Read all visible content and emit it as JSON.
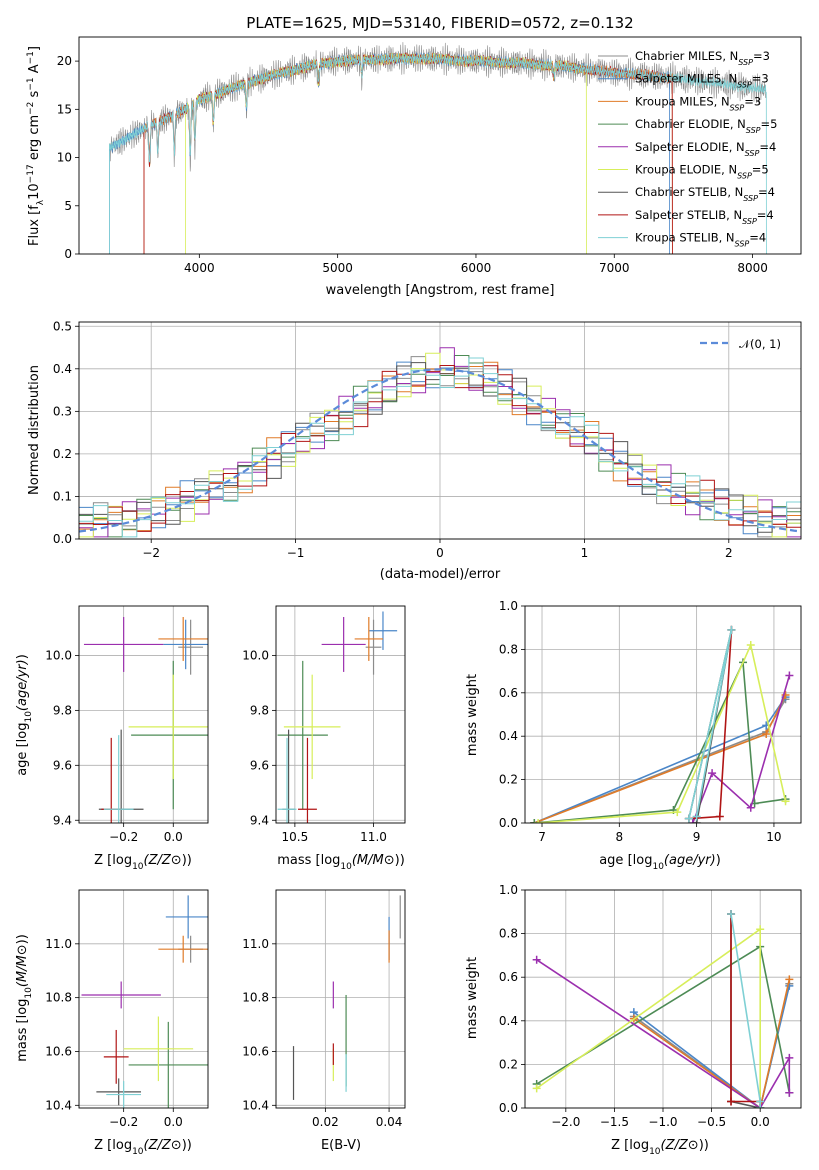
{
  "figure_title": "PLATE=1625, MJD=53140, FIBERID=0572, z=0.132",
  "models": [
    {
      "name": "Chabrier MILES",
      "nssp": "3",
      "color": "#8c8c8c"
    },
    {
      "name": "Salpeter MILES",
      "nssp": "3",
      "color": "#4a86c8"
    },
    {
      "name": "Kroupa MILES",
      "nssp": "3",
      "color": "#e07b28"
    },
    {
      "name": "Chabrier ELODIE",
      "nssp": "5",
      "color": "#4d8b55"
    },
    {
      "name": "Salpeter ELODIE",
      "nssp": "4",
      "color": "#9b2fae"
    },
    {
      "name": "Kroupa ELODIE",
      "nssp": "5",
      "color": "#d7ee5a"
    },
    {
      "name": "Chabrier STELIB",
      "nssp": "4",
      "color": "#555555"
    },
    {
      "name": "Salpeter STELIB",
      "nssp": "4",
      "color": "#b01515"
    },
    {
      "name": "Kroupa STELIB",
      "nssp": "4",
      "color": "#7fd0d4"
    }
  ],
  "chart_data": [
    {
      "id": "spectrum",
      "type": "line",
      "xlabel": "wavelength [Angstrom, rest frame]",
      "ylabel": "Flux [f",
      "xlim": [
        3130,
        8350
      ],
      "ylim": [
        0,
        22.5
      ],
      "xticks": [
        "4000",
        "5000",
        "6000",
        "7000",
        "8000"
      ],
      "yticks": [
        "0",
        "5",
        "10",
        "15",
        "20"
      ],
      "continuum": {
        "wavelength": [
          3350,
          3600,
          3750,
          3900,
          4000,
          4200,
          4400,
          4600,
          4800,
          5000,
          5300,
          5600,
          6000,
          6300,
          6600,
          7000,
          7400,
          7800,
          8100
        ],
        "flux": [
          11.0,
          13.0,
          14.0,
          15.0,
          16.0,
          17.0,
          18.0,
          18.8,
          19.5,
          20.0,
          20.2,
          20.3,
          20.0,
          19.8,
          19.5,
          18.8,
          18.3,
          17.6,
          17.0
        ]
      },
      "model_coverage": [
        {
          "model": "Salpeter MILES",
          "from": 3350,
          "to": 7400
        },
        {
          "model": "Kroupa MILES",
          "from": 3600,
          "to": 7420
        },
        {
          "model": "Kroupa ELODIE",
          "from": 3900,
          "to": 6800
        },
        {
          "model": "Salpeter STELIB",
          "from": 3600,
          "to": 7420
        },
        {
          "model": "Kroupa STELIB",
          "from": 3350,
          "to": 8100
        }
      ]
    },
    {
      "id": "residuals",
      "type": "histogram",
      "xlabel": "(data-model)/error",
      "ylabel": "Normed distribution",
      "xlim": [
        -2.5,
        2.5
      ],
      "ylim": [
        0,
        0.51
      ],
      "xticks": [
        "−2",
        "−1",
        "0",
        "1",
        "2"
      ],
      "yticks": [
        "0.0",
        "0.1",
        "0.2",
        "0.3",
        "0.4",
        "0.5"
      ],
      "legend": "𝒩(0, 1)",
      "reference_curve": {
        "name": "N(0,1)",
        "mean": 0,
        "sigma": 1
      },
      "bin_width": 0.1,
      "bins_from": -2.5,
      "envelope": [
        0.035,
        0.04,
        0.045,
        0.05,
        0.06,
        0.07,
        0.08,
        0.09,
        0.1,
        0.12,
        0.13,
        0.15,
        0.17,
        0.19,
        0.21,
        0.23,
        0.25,
        0.27,
        0.29,
        0.31,
        0.33,
        0.35,
        0.37,
        0.38,
        0.39,
        0.4,
        0.39,
        0.38,
        0.37,
        0.35,
        0.33,
        0.31,
        0.29,
        0.27,
        0.25,
        0.23,
        0.2,
        0.18,
        0.16,
        0.14,
        0.13,
        0.11,
        0.1,
        0.09,
        0.08,
        0.07,
        0.06,
        0.05,
        0.045,
        0.04
      ]
    },
    {
      "id": "age_vs_Z",
      "type": "errorbar",
      "xlabel": "Z [log",
      "ylabel": "age  [log",
      "xlim": [
        -0.38,
        0.14
      ],
      "ylim": [
        9.39,
        10.18
      ],
      "xticks": [
        "−0.2",
        "0.0"
      ],
      "yticks": [
        "9.4",
        "9.6",
        "9.8",
        "10.0"
      ],
      "points": [
        {
          "x": 0.07,
          "y": 10.03,
          "xerr": 0.05,
          "yerr": 0.1
        },
        {
          "x": 0.05,
          "y": 10.04,
          "xerr": 0.09,
          "yerr": 0.09
        },
        {
          "x": 0.04,
          "y": 10.06,
          "xerr": 0.1,
          "yerr": 0.08
        },
        {
          "x": 0.0,
          "y": 9.71,
          "xerr": 0.17,
          "yerr": 0.27
        },
        {
          "x": -0.2,
          "y": 10.04,
          "xerr": 0.16,
          "yerr": 0.1
        },
        {
          "x": 0.0,
          "y": 9.74,
          "xerr": 0.18,
          "yerr": 0.19
        },
        {
          "x": -0.21,
          "y": 9.44,
          "xerr": 0.09,
          "yerr": 0.29
        },
        {
          "x": -0.25,
          "y": 9.44,
          "xerr": 0.04,
          "yerr": 0.26
        },
        {
          "x": -0.22,
          "y": 9.44,
          "xerr": 0.06,
          "yerr": 0.27
        }
      ]
    },
    {
      "id": "age_vs_mass",
      "type": "errorbar",
      "xlabel": "mass [log",
      "ylabel": "",
      "xlim": [
        10.38,
        11.2
      ],
      "ylim": [
        9.39,
        10.18
      ],
      "xticks": [
        "10.5",
        "11.0"
      ],
      "yticks": [
        "9.4",
        "9.6",
        "9.8",
        "10.0",
        "",
        ""
      ],
      "points": [
        {
          "x": 11.0,
          "y": 10.03,
          "xerr": 0.05,
          "yerr": 0.1
        },
        {
          "x": 11.06,
          "y": 10.09,
          "xerr": 0.09,
          "yerr": 0.07
        },
        {
          "x": 10.97,
          "y": 10.06,
          "xerr": 0.09,
          "yerr": 0.08
        },
        {
          "x": 10.55,
          "y": 9.71,
          "xerr": 0.16,
          "yerr": 0.27
        },
        {
          "x": 10.81,
          "y": 10.04,
          "xerr": 0.14,
          "yerr": 0.1
        },
        {
          "x": 10.61,
          "y": 9.74,
          "xerr": 0.18,
          "yerr": 0.19
        },
        {
          "x": 10.46,
          "y": 9.44,
          "xerr": 0.04,
          "yerr": 0.29
        },
        {
          "x": 10.58,
          "y": 9.44,
          "xerr": 0.06,
          "yerr": 0.26
        },
        {
          "x": 10.45,
          "y": 9.44,
          "xerr": 0.06,
          "yerr": 0.26
        }
      ]
    },
    {
      "id": "mass_weight_vs_age",
      "type": "line",
      "xlabel": "age  [log",
      "ylabel": "mass weight",
      "xlim": [
        6.78,
        10.35
      ],
      "ylim": [
        0,
        1
      ],
      "xticks": [
        "7",
        "8",
        "9",
        "10"
      ],
      "yticks": [
        "0.0",
        "0.2",
        "0.4",
        "0.6",
        "0.8",
        "1.0"
      ],
      "series": [
        {
          "x": [
            6.9,
            9.9,
            10.15
          ],
          "y": [
            0.0,
            0.42,
            0.57
          ]
        },
        {
          "x": [
            6.9,
            9.9,
            10.15
          ],
          "y": [
            0.0,
            0.45,
            0.58
          ]
        },
        {
          "x": [
            6.9,
            9.9,
            10.15
          ],
          "y": [
            0.0,
            0.41,
            0.59
          ]
        },
        {
          "x": [
            6.9,
            8.7,
            9.6,
            9.75,
            10.15
          ],
          "y": [
            0.0,
            0.06,
            0.74,
            0.09,
            0.11
          ]
        },
        {
          "x": [
            8.95,
            9.2,
            9.7,
            10.2
          ],
          "y": [
            0.0,
            0.23,
            0.07,
            0.68
          ]
        },
        {
          "x": [
            6.95,
            8.75,
            9.7,
            10.15
          ],
          "y": [
            0.0,
            0.05,
            0.82,
            0.1
          ]
        },
        {
          "x": [
            8.9,
            9.45,
            9.0
          ],
          "y": [
            0.02,
            0.89,
            0.0
          ]
        },
        {
          "x": [
            8.9,
            9.3,
            9.45
          ],
          "y": [
            0.02,
            0.03,
            0.89
          ]
        },
        {
          "x": [
            8.9,
            9.45,
            9.0
          ],
          "y": [
            0.02,
            0.89,
            0.03
          ]
        }
      ]
    },
    {
      "id": "mass_vs_Z",
      "type": "errorbar",
      "xlabel": "Z [log",
      "ylabel": "mass [log",
      "xlim": [
        -0.38,
        0.14
      ],
      "ylim": [
        10.39,
        11.2
      ],
      "xticks": [
        "−0.2",
        "0.0"
      ],
      "yticks": [
        "10.4",
        "10.6",
        "10.8",
        "11.0"
      ],
      "points": [
        {
          "x": 0.07,
          "y": 10.98,
          "xerr": 0.05,
          "yerr": 0.05
        },
        {
          "x": 0.06,
          "y": 11.1,
          "xerr": 0.09,
          "yerr": 0.08
        },
        {
          "x": 0.04,
          "y": 10.98,
          "xerr": 0.1,
          "yerr": 0.05
        },
        {
          "x": -0.02,
          "y": 10.55,
          "xerr": 0.16,
          "yerr": 0.16
        },
        {
          "x": -0.21,
          "y": 10.81,
          "xerr": 0.16,
          "yerr": 0.05
        },
        {
          "x": -0.06,
          "y": 10.61,
          "xerr": 0.14,
          "yerr": 0.12
        },
        {
          "x": -0.22,
          "y": 10.45,
          "xerr": 0.09,
          "yerr": 0.05
        },
        {
          "x": -0.23,
          "y": 10.58,
          "xerr": 0.05,
          "yerr": 0.1
        },
        {
          "x": -0.2,
          "y": 10.44,
          "xerr": 0.07,
          "yerr": 0.05
        }
      ]
    },
    {
      "id": "mass_vs_ebv",
      "type": "errorbar",
      "xlabel": "E(B-V)",
      "ylabel": "",
      "xlim": [
        0.0045,
        0.045
      ],
      "ylim": [
        10.39,
        11.2
      ],
      "xticks": [
        "0.02",
        "0.04"
      ],
      "yticks": [
        "10.4",
        "10.6",
        "10.8",
        "11.0"
      ],
      "points": [
        {
          "x": 0.0435,
          "y": 11.1,
          "xerr": 0,
          "yerr": 0.08
        },
        {
          "x": 0.04,
          "y": 11.02,
          "xerr": 0,
          "yerr": 0.08
        },
        {
          "x": 0.04,
          "y": 10.99,
          "xerr": 0,
          "yerr": 0.06
        },
        {
          "x": 0.0265,
          "y": 10.64,
          "xerr": 0,
          "yerr": 0.17
        },
        {
          "x": 0.0225,
          "y": 10.81,
          "xerr": 0,
          "yerr": 0.05
        },
        {
          "x": 0.0225,
          "y": 10.55,
          "xerr": 0,
          "yerr": 0.06
        },
        {
          "x": 0.01,
          "y": 10.52,
          "xerr": 0,
          "yerr": 0.1
        },
        {
          "x": 0.0225,
          "y": 10.59,
          "xerr": 0,
          "yerr": 0.04
        },
        {
          "x": 0.0265,
          "y": 10.52,
          "xerr": 0,
          "yerr": 0.07
        }
      ]
    },
    {
      "id": "mass_weight_vs_Z",
      "type": "line",
      "xlabel": "Z [log",
      "ylabel": "mass weight",
      "xlim": [
        -2.42,
        0.42
      ],
      "ylim": [
        0,
        1
      ],
      "xticks": [
        "−2.0",
        "−1.5",
        "−1.0",
        "−0.5",
        "0.0"
      ],
      "yticks": [
        "0.0",
        "0.2",
        "0.4",
        "0.6",
        "0.8",
        "1.0"
      ],
      "series": [
        {
          "x": [
            -1.3,
            0.0,
            0.3
          ],
          "y": [
            0.42,
            0.0,
            0.57
          ]
        },
        {
          "x": [
            -1.3,
            0.0,
            0.3
          ],
          "y": [
            0.44,
            0.0,
            0.56
          ]
        },
        {
          "x": [
            -1.3,
            0.0,
            0.3
          ],
          "y": [
            0.41,
            0.0,
            0.59
          ]
        },
        {
          "x": [
            -2.3,
            0.0,
            0.3
          ],
          "y": [
            0.11,
            0.74,
            0.07
          ]
        },
        {
          "x": [
            -2.3,
            0.0,
            0.3,
            0.3
          ],
          "y": [
            0.68,
            0.0,
            0.23,
            0.07
          ]
        },
        {
          "x": [
            -2.3,
            0.0,
            0.0
          ],
          "y": [
            0.09,
            0.82,
            0.0
          ]
        },
        {
          "x": [
            -0.3,
            -0.3,
            0.0
          ],
          "y": [
            0.89,
            0.03,
            0.0
          ]
        },
        {
          "x": [
            -0.3,
            -0.3,
            0.0
          ],
          "y": [
            0.89,
            0.03,
            0.03
          ]
        },
        {
          "x": [
            -0.3,
            0.0,
            0.0
          ],
          "y": [
            0.89,
            0.03,
            0.0
          ]
        }
      ]
    }
  ]
}
